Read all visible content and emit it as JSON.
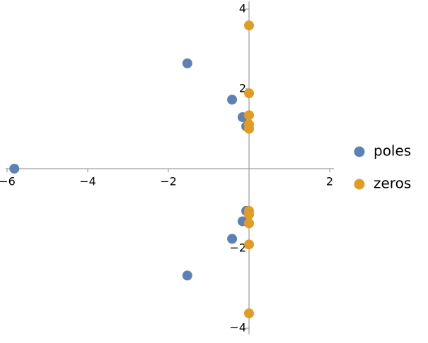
{
  "chart_data": {
    "type": "scatter",
    "series": [
      {
        "name": "poles",
        "color": "#5e81b5",
        "x": [
          -5.82,
          -1.53,
          -0.42,
          -0.16,
          -0.07,
          -0.07,
          -0.16,
          -0.42,
          -1.53
        ],
        "values": [
          0,
          2.64,
          1.73,
          1.29,
          1.06,
          -1.06,
          -1.32,
          -1.76,
          -2.68
        ]
      },
      {
        "name": "zeros",
        "color": "#e19c24",
        "x": [
          0,
          0,
          0,
          0,
          0,
          0,
          0,
          0,
          0,
          0
        ],
        "values": [
          3.59,
          1.89,
          1.34,
          1.11,
          1.0,
          -1.06,
          -1.15,
          -1.37,
          -1.9,
          -3.63
        ]
      }
    ],
    "xlim": [
      -6.04,
      2.11
    ],
    "ylim": [
      -4.15,
      4.2
    ],
    "xticks": [
      {
        "value": -6,
        "label": "−6"
      },
      {
        "value": -4,
        "label": "−4"
      },
      {
        "value": -2,
        "label": "−2"
      },
      2
    ],
    "yticks": [
      {
        "value": -4,
        "label": "−4"
      },
      {
        "value": -2,
        "label": "−2"
      },
      2,
      4
    ],
    "legend": "right"
  }
}
